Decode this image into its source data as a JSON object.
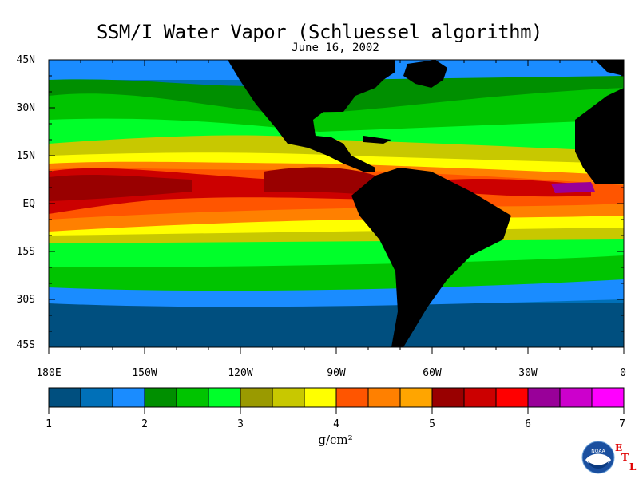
{
  "title": "SSM/I Water Vapor (Schluessel algorithm)",
  "subtitle": "June 16, 2002",
  "map": {
    "type": "heatmap",
    "lat_labels": [
      "45N",
      "30N",
      "15N",
      "EQ",
      "15S",
      "30S",
      "45S"
    ],
    "lon_labels": [
      "180E",
      "150W",
      "120W",
      "90W",
      "60W",
      "30W",
      "0"
    ],
    "lat_range": [
      -45,
      45
    ],
    "lon_range": [
      -180,
      0
    ],
    "land_color": "#000000",
    "grid": false
  },
  "colorbar": {
    "labels": [
      "1",
      "2",
      "3",
      "4",
      "5",
      "6",
      "7"
    ],
    "units": "g/cm²",
    "range": [
      1,
      7
    ],
    "colors": [
      "#004f7f",
      "#0070b8",
      "#1a8cff",
      "#008f00",
      "#00c400",
      "#00ff2a",
      "#9a9a00",
      "#c8c800",
      "#ffff00",
      "#ff5500",
      "#ff8000",
      "#ffa500",
      "#990000",
      "#cc0000",
      "#ff0000",
      "#990099",
      "#cc00cc",
      "#ff00ff"
    ]
  },
  "logo": {
    "icon": "noaa-logo",
    "text": "NOAA",
    "letters": [
      "E",
      "T",
      "L"
    ]
  }
}
